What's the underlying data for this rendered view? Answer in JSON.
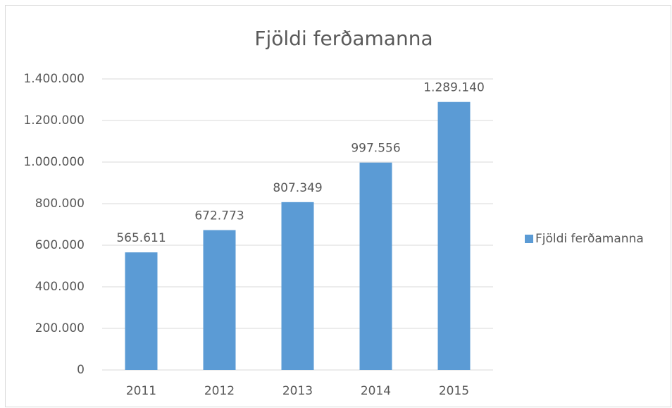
{
  "chart_data": {
    "type": "bar",
    "title": "Fjöldi ferðamanna",
    "categories": [
      "2011",
      "2012",
      "2013",
      "2014",
      "2015"
    ],
    "series": [
      {
        "name": "Fjöldi ferðamanna",
        "color": "#5b9bd5",
        "values": [
          565611,
          672773,
          807349,
          997556,
          1289140
        ],
        "value_labels": [
          "565.611",
          "672.773",
          "807.349",
          "997.556",
          "1.289.140"
        ]
      }
    ],
    "ylim": [
      0,
      1400000
    ],
    "yticks": [
      0,
      {
        "value": 200000,
        "label": "200.000"
      },
      {
        "value": 400000,
        "label": "400.000"
      },
      {
        "value": 600000,
        "label": "600.000"
      },
      {
        "value": 800000,
        "label": "800.000"
      },
      {
        "value": 1000000,
        "label": "1.000.000"
      },
      {
        "value": 1200000,
        "label": "1.200.000"
      },
      {
        "value": 1400000,
        "label": "1.400.000"
      }
    ],
    "grid": true,
    "legend": "right"
  }
}
